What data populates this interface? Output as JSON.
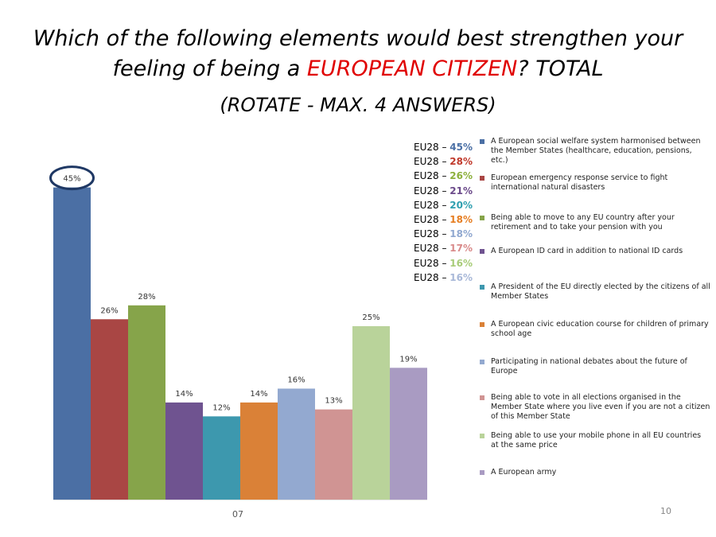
{
  "title": {
    "line1": "Which of the following elements would best strengthen your",
    "line2_prefix": "feeling of being a ",
    "line2_accent": "EUROPEAN CITIZEN",
    "line2_suffix": "? TOTAL",
    "accent_color": "#e00000"
  },
  "subtitle": "(ROTATE - MAX. 4 ANSWERS)",
  "page_number": "10",
  "x_category": "07",
  "eu28": {
    "prefix": "EU28 –",
    "rows": [
      {
        "value": "45%",
        "color": "#4a6fa5"
      },
      {
        "value": "28%",
        "color": "#c0392b"
      },
      {
        "value": "26%",
        "color": "#8db03c"
      },
      {
        "value": "21%",
        "color": "#6b4a8a"
      },
      {
        "value": "20%",
        "color": "#2e9fb0"
      },
      {
        "value": "18%",
        "color": "#e67e22"
      },
      {
        "value": "18%",
        "color": "#90a8d0"
      },
      {
        "value": "17%",
        "color": "#d98a8a"
      },
      {
        "value": "16%",
        "color": "#a8cc78"
      },
      {
        "value": "16%",
        "color": "#a8b8d8"
      }
    ]
  },
  "chart_data": {
    "type": "bar",
    "x": [
      "07"
    ],
    "ylim": [
      0,
      50
    ],
    "series": [
      {
        "name": "A European social welfare system harmonised between the Member States (healthcare, education, pensions, etc.)",
        "value": 45,
        "label": "45%",
        "color": "#4b6fa4",
        "highlighted": true
      },
      {
        "name": "European emergency response service to fight international natural disasters",
        "value": 26,
        "label": "26%",
        "color": "#a94644"
      },
      {
        "name": "Being able to move to any EU country after your retirement and to take your pension with you",
        "value": 28,
        "label": "28%",
        "color": "#86a44a"
      },
      {
        "name": "A European ID card in addition to national ID cards",
        "value": 14,
        "label": "14%",
        "color": "#6f5390"
      },
      {
        "name": "A President of the EU directly elected by the citizens of all Member States",
        "value": 12,
        "label": "12%",
        "color": "#3d98ae"
      },
      {
        "name": "A European civic education course for children of primary school age",
        "value": 14,
        "label": "14%",
        "color": "#da8137"
      },
      {
        "name": "Participating in national debates about the future of Europe",
        "value": 16,
        "label": "16%",
        "color": "#93a9d0"
      },
      {
        "name": "Being able to vote in all elections organised in the Member State where you live even if you are not a citizen of this Member State",
        "value": 13,
        "label": "13%",
        "color": "#d09493"
      },
      {
        "name": "Being able to use your mobile phone in all EU countries at the same price",
        "value": 25,
        "label": "25%",
        "color": "#b9d39a"
      },
      {
        "name": "A European army",
        "value": 19,
        "label": "19%",
        "color": "#a99bc2"
      }
    ]
  }
}
